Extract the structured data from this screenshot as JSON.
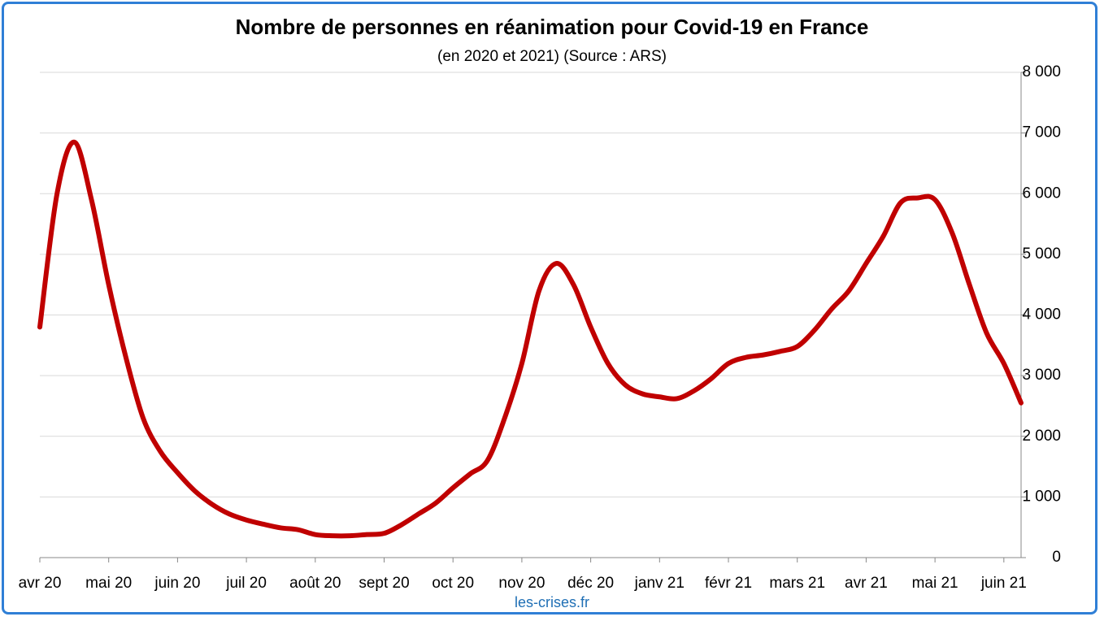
{
  "chart_data": {
    "type": "line",
    "title": "Nombre de personnes en réanimation pour Covid-19 en France",
    "subtitle": "(en 2020 et 2021) (Source : ARS)",
    "source": "les-crises.fr",
    "categories": [
      "avr 20",
      null,
      null,
      null,
      "mai 20",
      null,
      null,
      null,
      "juin 20",
      null,
      null,
      null,
      "juil 20",
      null,
      null,
      null,
      "août 20",
      null,
      null,
      null,
      "sept 20",
      null,
      null,
      null,
      "oct 20",
      null,
      null,
      null,
      "nov 20",
      null,
      null,
      null,
      "déc 20",
      null,
      null,
      null,
      "janv 21",
      null,
      null,
      null,
      "févr 21",
      null,
      null,
      null,
      "mars 21",
      null,
      null,
      null,
      "avr 21",
      null,
      null,
      null,
      "mai 21",
      null,
      null,
      null,
      "juin 21",
      null
    ],
    "series": [
      {
        "name": "Réanimation",
        "color": "#c00000",
        "values": [
          3800,
          6000,
          6850,
          5900,
          4500,
          3300,
          2300,
          1750,
          1400,
          1100,
          880,
          720,
          620,
          550,
          490,
          460,
          380,
          360,
          360,
          380,
          400,
          540,
          720,
          900,
          1150,
          1380,
          1600,
          2300,
          3200,
          4400,
          4850,
          4500,
          3800,
          3200,
          2850,
          2700,
          2650,
          2620,
          2750,
          2950,
          3200,
          3300,
          3340,
          3400,
          3480,
          3750,
          4100,
          4400,
          4850,
          5300,
          5850,
          5930,
          5900,
          5350,
          4500,
          3700,
          3200,
          2550
        ]
      }
    ],
    "ylim": [
      0,
      8000
    ],
    "yticks": [
      0,
      {
        "value": 1000,
        "label": "1 000"
      },
      {
        "value": 2000,
        "label": "2 000"
      },
      {
        "value": 3000,
        "label": "3 000"
      },
      {
        "value": 4000,
        "label": "4 000"
      },
      {
        "value": 5000,
        "label": "5 000"
      },
      {
        "value": 6000,
        "label": "6 000"
      },
      {
        "value": 7000,
        "label": "7 000"
      },
      {
        "value": 8000,
        "label": "8 000"
      }
    ],
    "grid": true
  }
}
